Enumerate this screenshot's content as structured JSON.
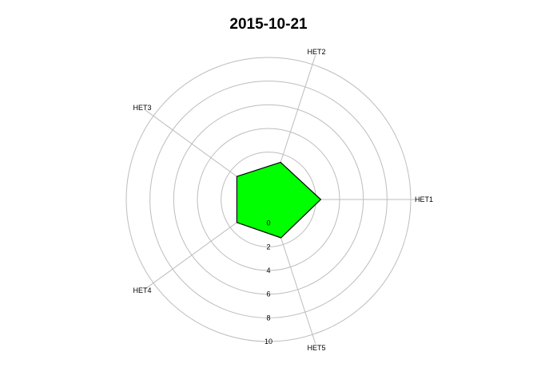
{
  "chart_data": {
    "type": "radar",
    "title": "2015-10-21",
    "axes": [
      "HET1",
      "HET2",
      "HET3",
      "HET4",
      "HET5"
    ],
    "series": [
      {
        "values": [
          2.4,
          1.3,
          1.3,
          1.3,
          1.4
        ],
        "fill": "#00ff00",
        "stroke": "#000000"
      }
    ],
    "radial_ticks": [
      "0",
      "2",
      "4",
      "6",
      "8",
      "10"
    ],
    "radial_min": -2,
    "radial_max": 10,
    "grid": true,
    "gridline_values": [
      0,
      2,
      4,
      6,
      8,
      10
    ]
  }
}
